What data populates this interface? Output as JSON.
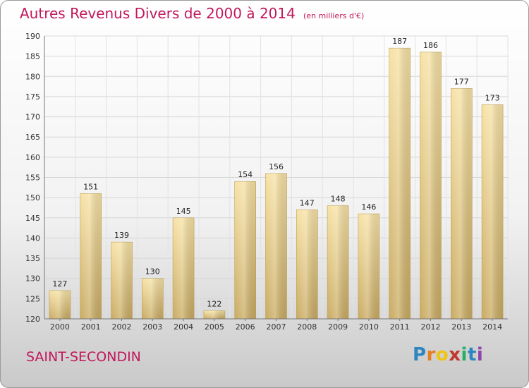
{
  "chart_data": {
    "type": "bar",
    "title": "Autres Revenus Divers de 2000 à 2014",
    "subtitle": "(en milliers d'€)",
    "categories": [
      "2000",
      "2001",
      "2002",
      "2003",
      "2004",
      "2005",
      "2006",
      "2007",
      "2008",
      "2009",
      "2010",
      "2011",
      "2012",
      "2013",
      "2014"
    ],
    "values": [
      127,
      151,
      139,
      130,
      145,
      122,
      154,
      156,
      147,
      148,
      146,
      187,
      186,
      177,
      173
    ],
    "ylim": [
      120,
      190
    ],
    "yticks": [
      120,
      125,
      130,
      135,
      140,
      145,
      150,
      155,
      160,
      165,
      170,
      175,
      180,
      185,
      190
    ],
    "grid": true,
    "bar_color": "#e8cc82"
  },
  "location": "SAINT-SECONDIN",
  "logo": {
    "letters": [
      "P",
      "r",
      "o",
      "x",
      "i",
      "t",
      "i"
    ],
    "colors": [
      "#2e86c1",
      "#e67e22",
      "#f1c40f",
      "#c0392b",
      "#27ae60",
      "#2e86c1",
      "#8e44ad"
    ]
  }
}
